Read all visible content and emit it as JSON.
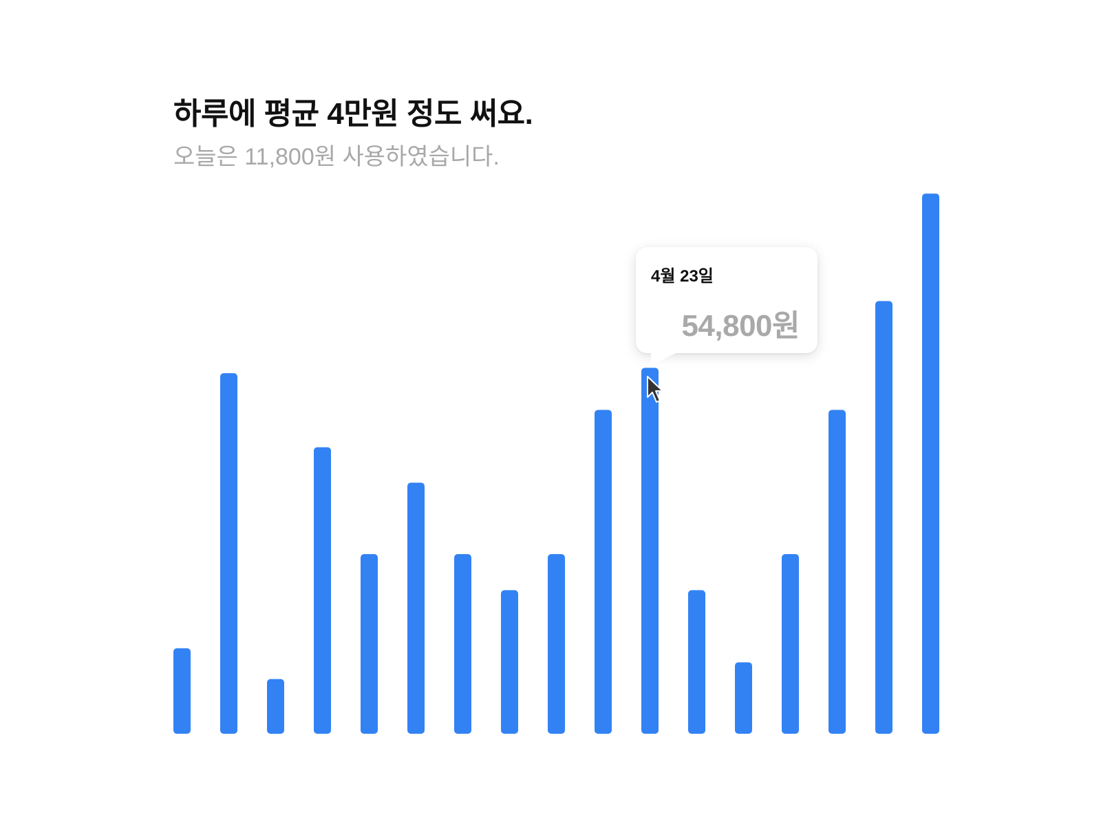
{
  "header": {
    "title": "하루에 평균 4만원 정도 써요.",
    "subtitle": "오늘은 11,800원 사용하였습니다."
  },
  "tooltip": {
    "date": "4월 23일",
    "amount": "54,800원"
  },
  "colors": {
    "bar": "#3282f4",
    "title": "#111111",
    "subtitle": "#a8a8a8",
    "tooltip_amount": "#a9a9a9"
  },
  "chart_data": {
    "type": "bar",
    "title": "하루에 평균 4만원 정도 써요.",
    "subtitle": "오늘은 11,800원 사용하였습니다.",
    "xlabel": "",
    "ylabel": "",
    "grid": false,
    "legend": "none",
    "ylim": [
      0,
      87000
    ],
    "values": [
      12800,
      54000,
      8200,
      42900,
      26900,
      37600,
      26900,
      21500,
      26900,
      48500,
      54800,
      21500,
      10700,
      26900,
      48500,
      64800,
      80900
    ],
    "highlight": {
      "index": 10,
      "date": "4월 23일",
      "value": 54800
    }
  }
}
